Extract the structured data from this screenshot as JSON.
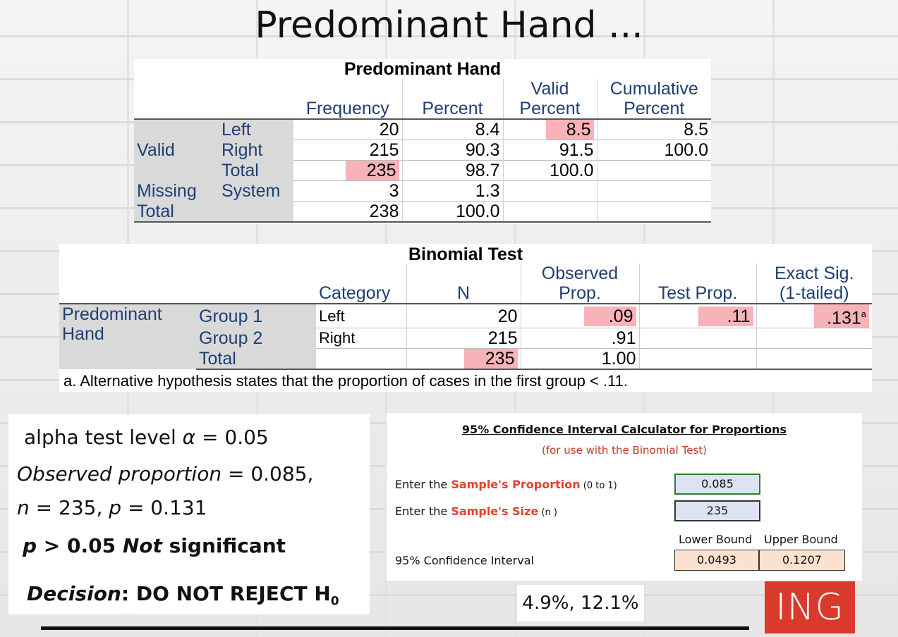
{
  "slide": {
    "title": "Predominant Hand ..."
  },
  "freq_table": {
    "title": "Predominant Hand",
    "headers": {
      "frequency": "Frequency",
      "percent": "Percent",
      "valid_percent_1": "Valid",
      "valid_percent_2": "Percent",
      "cumulative_1": "Cumulative",
      "cumulative_2": "Percent"
    },
    "row_groups": {
      "valid": "Valid",
      "missing": "Missing",
      "total": "Total"
    },
    "rows": [
      {
        "label": "Left",
        "frequency": "20",
        "percent": "8.4",
        "valid_percent": "8.5",
        "cumulative": "8.5"
      },
      {
        "label": "Right",
        "frequency": "215",
        "percent": "90.3",
        "valid_percent": "91.5",
        "cumulative": "100.0"
      },
      {
        "label": "Total",
        "frequency": "235",
        "percent": "98.7",
        "valid_percent": "100.0",
        "cumulative": ""
      },
      {
        "label": "System",
        "frequency": "3",
        "percent": "1.3",
        "valid_percent": "",
        "cumulative": ""
      },
      {
        "label": "",
        "frequency": "238",
        "percent": "100.0",
        "valid_percent": "",
        "cumulative": ""
      }
    ]
  },
  "binomial_table": {
    "title": "Binomial Test",
    "headers": {
      "category": "Category",
      "n": "N",
      "observed_1": "Observed",
      "observed_2": "Prop.",
      "test_prop": "Test Prop.",
      "exact_1": "Exact Sig.",
      "exact_2": "(1-tailed)"
    },
    "variable_1": "Predominant",
    "variable_2": "Hand",
    "rows": [
      {
        "group": "Group 1",
        "category": "Left",
        "n": "20",
        "observed": ".09",
        "test_prop": ".11",
        "exact_sig": ".131",
        "sup": "a"
      },
      {
        "group": "Group 2",
        "category": "Right",
        "n": "215",
        "observed": ".91",
        "test_prop": "",
        "exact_sig": "",
        "sup": ""
      },
      {
        "group": "Total",
        "category": "",
        "n": "235",
        "observed": "1.00",
        "test_prop": "",
        "exact_sig": "",
        "sup": ""
      }
    ],
    "footnote": "a. Alternative hypothesis states that the proportion of cases in the first group < .11."
  },
  "notes": {
    "alpha_prefix": "alpha test level ",
    "alpha_symbol": "α",
    "alpha_value": " = 0.05",
    "observed_label": "Observed proportion",
    "observed_value": " = 0.085,",
    "n_label": "n",
    "n_value": " = 235, ",
    "p_label": "p",
    "p_value": " = 0.131",
    "sig_p": "p",
    "sig_mid": " > 0.05 ",
    "sig_not": "Not",
    "sig_end": " significant",
    "decision_label": "Decision",
    "decision_colon": ":  ",
    "decision_text": "DO NOT REJECT H",
    "decision_sub": "0"
  },
  "calculator": {
    "title": "95% Confidence Interval Calculator for Proportions",
    "subtitle": "(for use with the Binomial Test)",
    "prop_prefix": "Enter the ",
    "prop_red": "Sample's Proportion",
    "prop_suffix": " (0 to 1)",
    "prop_value": "0.085",
    "size_prefix": "Enter the ",
    "size_red": "Sample's Size",
    "size_suffix": " (n )",
    "size_value": "235",
    "ci_label": "95% Confidence Interval",
    "lower_label": "Lower Bound",
    "upper_label": "Upper Bound",
    "lower_value": "0.0493",
    "upper_value": "0.1207"
  },
  "answer": "4.9%, 12.1%",
  "logo": "ING",
  "colors": {
    "highlight": "#f7b3b8",
    "spss_label": "#1f3f73",
    "logo_bg": "#d93a2b",
    "calc_red": "#e2402f"
  }
}
